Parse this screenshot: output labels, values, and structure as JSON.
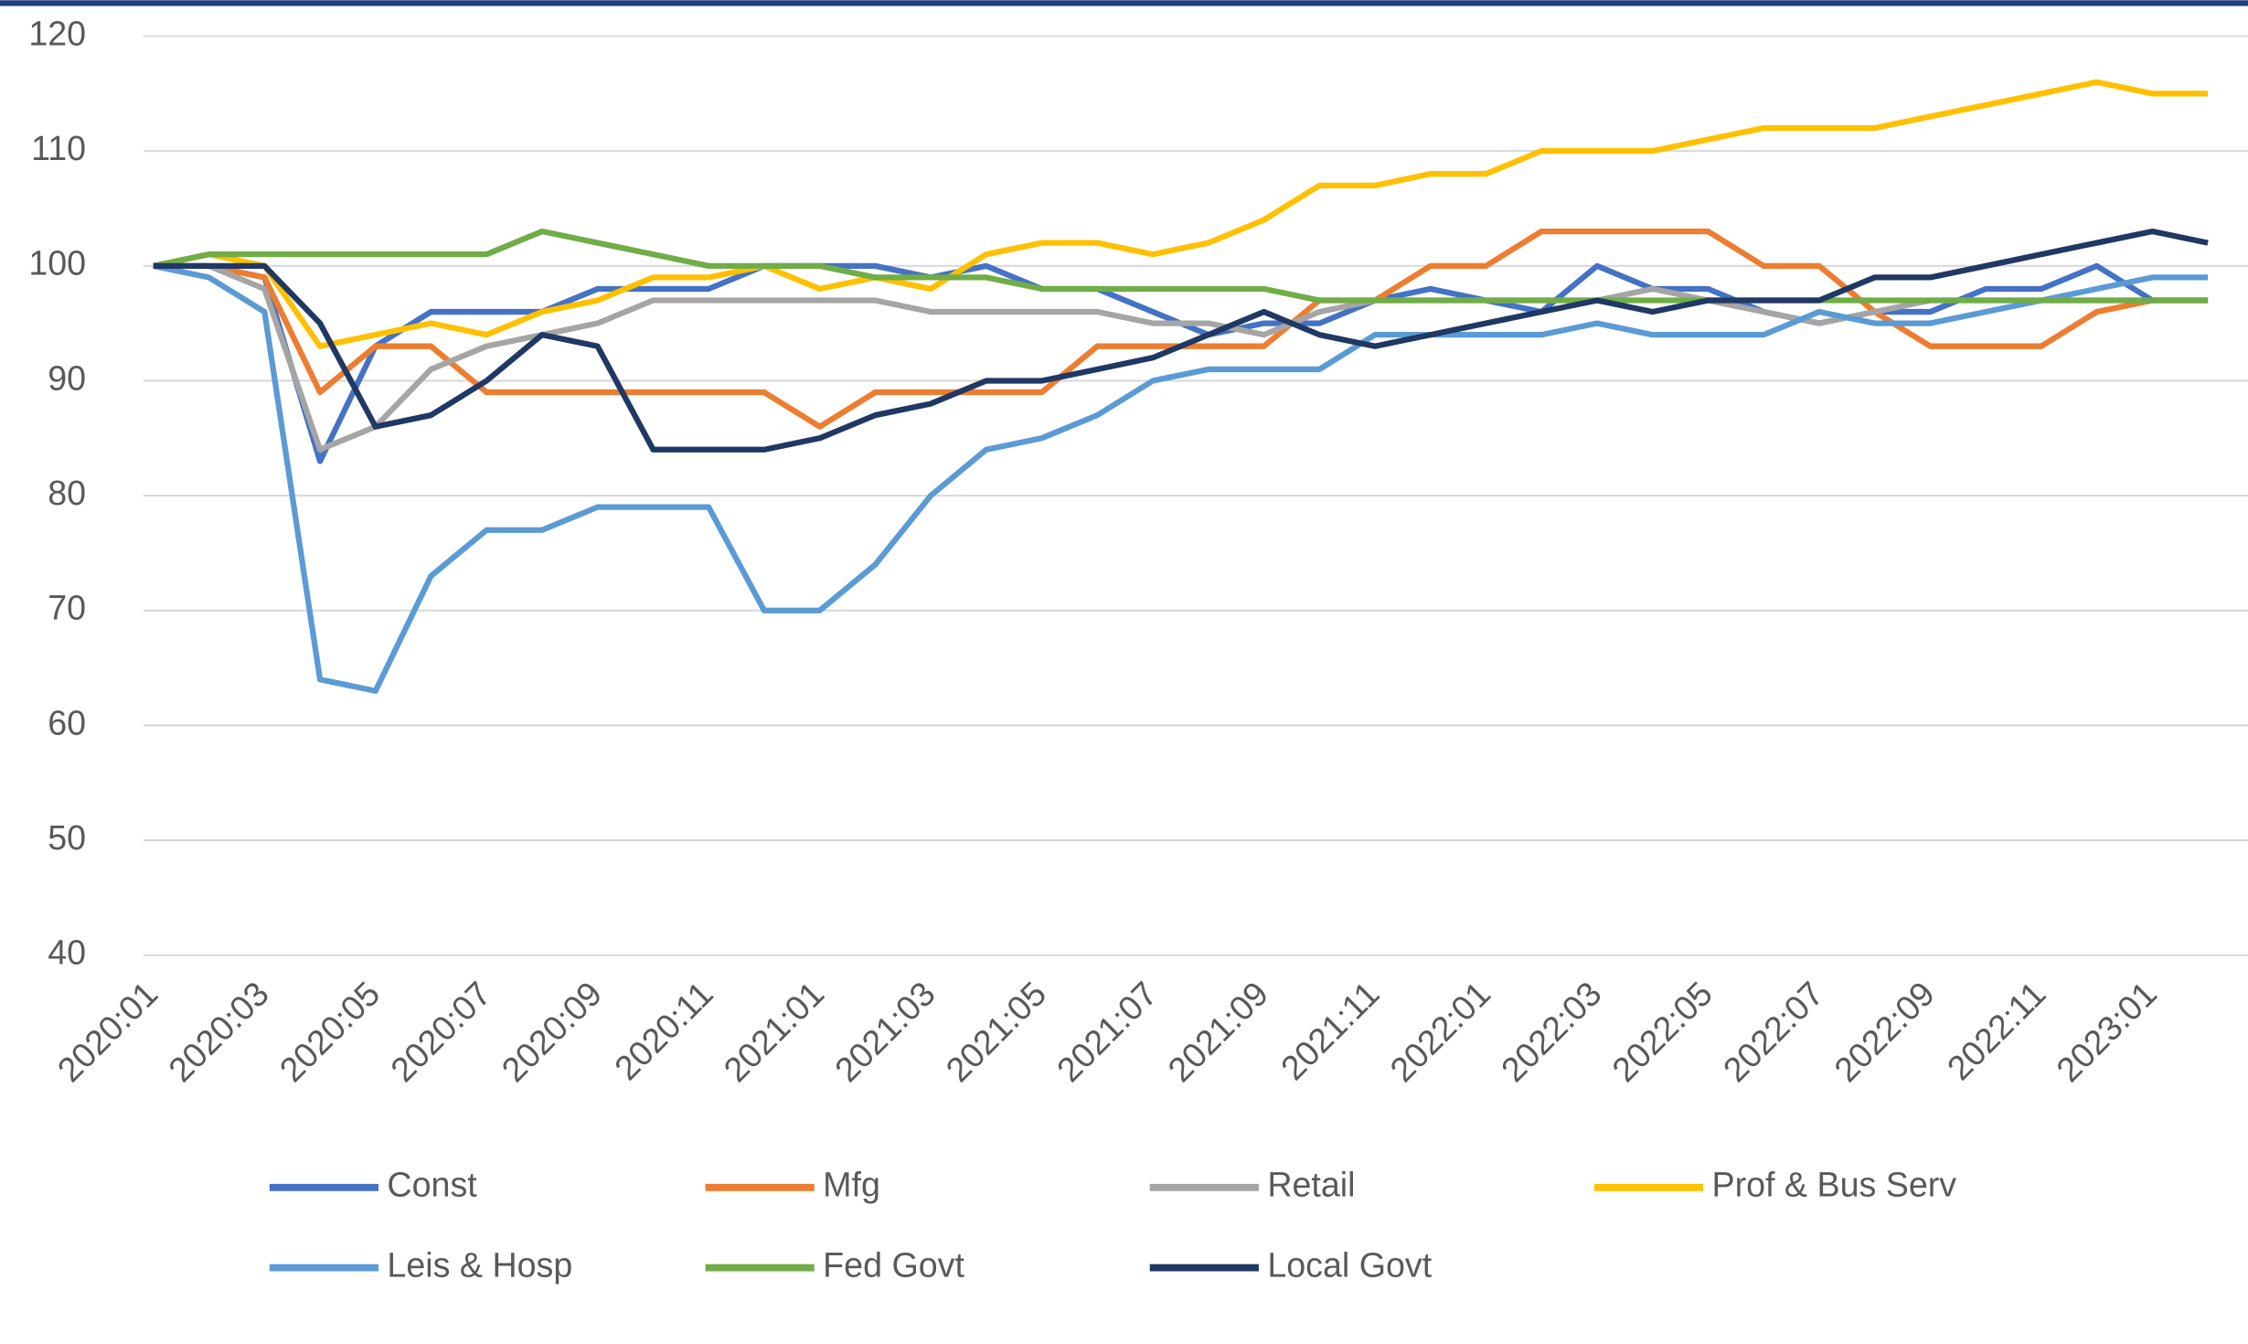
{
  "chart_data": {
    "type": "line",
    "categories": [
      "2020:01",
      null,
      "2020:03",
      null,
      "2020:05",
      null,
      "2020:07",
      null,
      "2020:09",
      null,
      "2020:11",
      null,
      "2021:01",
      null,
      "2021:03",
      null,
      "2021:05",
      null,
      "2021:07",
      null,
      "2021:09",
      null,
      "2021:11",
      null,
      "2022:01",
      null,
      "2022:03",
      null,
      "2022:05",
      null,
      "2022:07",
      null,
      "2022:09",
      null,
      "2022:11",
      null,
      "2023:01",
      null
    ],
    "series": [
      {
        "name": "Const",
        "color": "#4472c4",
        "values": [
          100,
          100,
          99,
          83,
          93,
          96,
          96,
          96,
          98,
          98,
          98,
          100,
          100,
          100,
          99,
          100,
          98,
          98,
          96,
          94,
          95,
          95,
          97,
          98,
          97,
          96,
          100,
          98,
          98,
          96,
          95,
          96,
          96,
          98,
          98,
          100,
          97,
          97
        ]
      },
      {
        "name": "Mfg",
        "color": "#ed7d31",
        "values": [
          100,
          100,
          99,
          89,
          93,
          93,
          89,
          89,
          89,
          89,
          89,
          89,
          86,
          89,
          89,
          89,
          89,
          93,
          93,
          93,
          93,
          97,
          97,
          100,
          100,
          103,
          103,
          103,
          103,
          100,
          100,
          96,
          93,
          93,
          93,
          96,
          97,
          97
        ]
      },
      {
        "name": "Retail",
        "color": "#a5a5a5",
        "values": [
          100,
          100,
          98,
          84,
          86,
          91,
          93,
          94,
          95,
          97,
          97,
          97,
          97,
          97,
          96,
          96,
          96,
          96,
          95,
          95,
          94,
          96,
          97,
          97,
          97,
          97,
          97,
          98,
          97,
          96,
          95,
          96,
          97,
          97,
          97,
          97,
          97,
          97
        ]
      },
      {
        "name": "Prof & Bus Serv",
        "color": "#ffc000",
        "values": [
          100,
          101,
          100,
          93,
          94,
          95,
          94,
          96,
          97,
          99,
          99,
          100,
          98,
          99,
          98,
          101,
          102,
          102,
          101,
          102,
          104,
          107,
          107,
          108,
          108,
          110,
          110,
          110,
          111,
          112,
          112,
          112,
          113,
          114,
          115,
          116,
          115,
          115
        ]
      },
      {
        "name": "Leis & Hosp",
        "color": "#5b9bd5",
        "values": [
          100,
          99,
          96,
          64,
          63,
          73,
          77,
          77,
          79,
          79,
          79,
          70,
          70,
          74,
          80,
          84,
          85,
          87,
          90,
          91,
          91,
          91,
          94,
          94,
          94,
          94,
          95,
          94,
          94,
          94,
          96,
          95,
          95,
          96,
          97,
          98,
          99,
          99
        ]
      },
      {
        "name": "Fed Govt",
        "color": "#70ad47",
        "values": [
          100,
          101,
          101,
          101,
          101,
          101,
          101,
          103,
          102,
          101,
          100,
          100,
          100,
          99,
          99,
          99,
          98,
          98,
          98,
          98,
          98,
          97,
          97,
          97,
          97,
          97,
          97,
          97,
          97,
          97,
          97,
          97,
          97,
          97,
          97,
          97,
          97,
          97
        ]
      },
      {
        "name": "Local Govt",
        "color": "#203864",
        "values": [
          100,
          100,
          100,
          95,
          86,
          87,
          90,
          94,
          93,
          84,
          84,
          84,
          85,
          87,
          88,
          90,
          90,
          91,
          92,
          94,
          96,
          94,
          93,
          94,
          95,
          96,
          97,
          96,
          97,
          97,
          97,
          99,
          99,
          100,
          101,
          102,
          103,
          102
        ]
      }
    ],
    "ylim": [
      40,
      120
    ],
    "yticks": [
      40,
      50,
      60,
      70,
      80,
      90,
      100,
      110,
      120
    ],
    "grid": true
  }
}
